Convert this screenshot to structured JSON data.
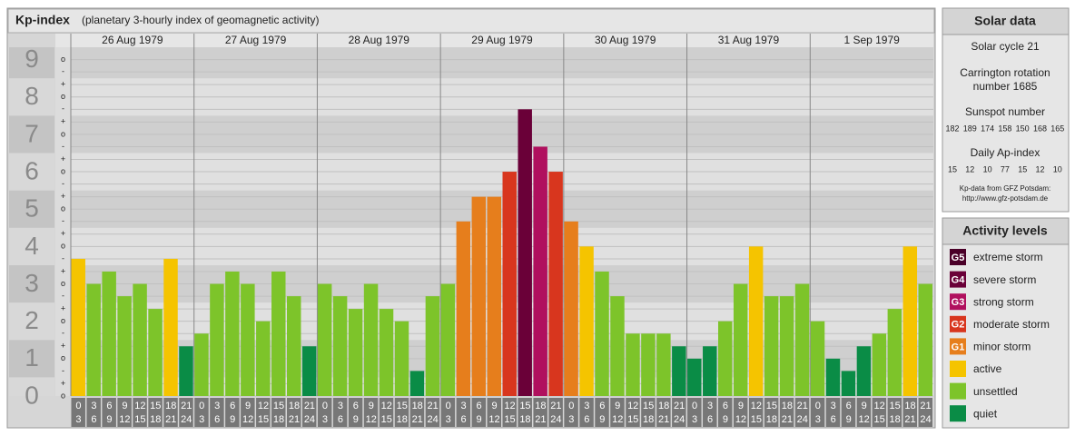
{
  "chart_data": {
    "type": "bar",
    "title": "Kp-index",
    "subtitle": "(planetary 3-hourly index of geomagnetic activity)",
    "ylim": [
      0,
      9.33
    ],
    "yticks": [
      0,
      1,
      2,
      3,
      4,
      5,
      6,
      7,
      8,
      9
    ],
    "yminor_ticks": [
      {
        "value": 0,
        "label": "o"
      },
      {
        "value": 0.33,
        "label": "+"
      },
      {
        "value": 0.67,
        "label": "-"
      },
      {
        "value": 1,
        "label": "o"
      },
      {
        "value": 1.33,
        "label": "+"
      },
      {
        "value": 1.67,
        "label": "-"
      },
      {
        "value": 2,
        "label": "o"
      },
      {
        "value": 2.33,
        "label": "+"
      },
      {
        "value": 2.67,
        "label": "-"
      },
      {
        "value": 3,
        "label": "o"
      },
      {
        "value": 3.33,
        "label": "+"
      },
      {
        "value": 3.67,
        "label": "-"
      },
      {
        "value": 4,
        "label": "o"
      },
      {
        "value": 4.33,
        "label": "+"
      },
      {
        "value": 4.67,
        "label": "-"
      },
      {
        "value": 5,
        "label": "o"
      },
      {
        "value": 5.33,
        "label": "+"
      },
      {
        "value": 5.67,
        "label": "-"
      },
      {
        "value": 6,
        "label": "o"
      },
      {
        "value": 6.33,
        "label": "+"
      },
      {
        "value": 6.67,
        "label": "-"
      },
      {
        "value": 7,
        "label": "o"
      },
      {
        "value": 7.33,
        "label": "+"
      },
      {
        "value": 7.67,
        "label": "-"
      },
      {
        "value": 8,
        "label": "o"
      },
      {
        "value": 8.33,
        "label": "+"
      },
      {
        "value": 8.67,
        "label": "-"
      },
      {
        "value": 9,
        "label": "o"
      }
    ],
    "hours_start": [
      0,
      3,
      6,
      9,
      12,
      15,
      18,
      21
    ],
    "hours_end": [
      3,
      6,
      9,
      12,
      15,
      18,
      21,
      24
    ],
    "days": [
      {
        "date": "26 Aug 1979",
        "values": [
          3.67,
          3,
          3.33,
          2.67,
          3,
          2.33,
          3.67,
          1.33
        ],
        "colors": [
          "#f5c400",
          "#7dc42a",
          "#7dc42a",
          "#7dc42a",
          "#7dc42a",
          "#7dc42a",
          "#f5c400",
          "#0a8c46"
        ]
      },
      {
        "date": "27 Aug 1979",
        "values": [
          1.67,
          3,
          3.33,
          3,
          2,
          3.33,
          2.67,
          1.33
        ],
        "colors": [
          "#7dc42a",
          "#7dc42a",
          "#7dc42a",
          "#7dc42a",
          "#7dc42a",
          "#7dc42a",
          "#7dc42a",
          "#0a8c46"
        ]
      },
      {
        "date": "28 Aug 1979",
        "values": [
          3,
          2.67,
          2.33,
          3,
          2.33,
          2,
          0.67,
          2.67
        ],
        "colors": [
          "#7dc42a",
          "#7dc42a",
          "#7dc42a",
          "#7dc42a",
          "#7dc42a",
          "#7dc42a",
          "#0a8c46",
          "#7dc42a"
        ]
      },
      {
        "date": "29 Aug 1979",
        "values": [
          3,
          4.67,
          5.33,
          5.33,
          6,
          7.67,
          6.67,
          6
        ],
        "colors": [
          "#7dc42a",
          "#e67e1c",
          "#e67e1c",
          "#e67e1c",
          "#d8361e",
          "#6a0038",
          "#b0105e",
          "#d8361e"
        ]
      },
      {
        "date": "30 Aug 1979",
        "values": [
          4.67,
          4,
          3.33,
          2.67,
          1.67,
          1.67,
          1.67,
          1.33
        ],
        "colors": [
          "#e67e1c",
          "#f5c400",
          "#7dc42a",
          "#7dc42a",
          "#7dc42a",
          "#7dc42a",
          "#7dc42a",
          "#0a8c46"
        ]
      },
      {
        "date": "31 Aug 1979",
        "values": [
          1,
          1.33,
          2,
          3,
          4,
          2.67,
          2.67,
          3
        ],
        "colors": [
          "#0a8c46",
          "#0a8c46",
          "#7dc42a",
          "#7dc42a",
          "#f5c400",
          "#7dc42a",
          "#7dc42a",
          "#7dc42a"
        ]
      },
      {
        "date": "1 Sep 1979",
        "values": [
          2,
          1,
          0.67,
          1.33,
          1.67,
          2.33,
          4,
          3
        ],
        "colors": [
          "#7dc42a",
          "#0a8c46",
          "#0a8c46",
          "#0a8c46",
          "#7dc42a",
          "#7dc42a",
          "#f5c400",
          "#7dc42a"
        ]
      }
    ]
  },
  "solar": {
    "title": "Solar data",
    "cycle": "Solar cycle 21",
    "carrington_1": "Carrington rotation",
    "carrington_2": "number 1685",
    "sunspot_title": "Sunspot number",
    "sunspot": [
      182,
      189,
      174,
      158,
      150,
      168,
      165
    ],
    "ap_title": "Daily Ap-index",
    "ap": [
      15,
      12,
      10,
      77,
      15,
      12,
      10
    ],
    "source_1": "Kp-data from GFZ Potsdam:",
    "source_2": "http://www.gfz-potsdam.de"
  },
  "legend": {
    "title": "Activity levels",
    "items": [
      {
        "badge": "G5",
        "label": "extreme storm",
        "color": "#4a0028"
      },
      {
        "badge": "G4",
        "label": "severe storm",
        "color": "#6a0038"
      },
      {
        "badge": "G3",
        "label": "strong storm",
        "color": "#b0105e"
      },
      {
        "badge": "G2",
        "label": "moderate storm",
        "color": "#d8361e"
      },
      {
        "badge": "G1",
        "label": "minor storm",
        "color": "#e67e1c"
      },
      {
        "label": "active",
        "color": "#f5c400"
      },
      {
        "label": "unsettled",
        "color": "#7dc42a"
      },
      {
        "label": "quiet",
        "color": "#0a8c46"
      }
    ]
  }
}
